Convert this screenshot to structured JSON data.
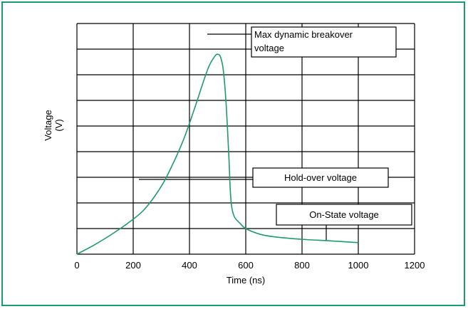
{
  "colors": {
    "frame": "#1f9a6e",
    "curve": "#1f9a6e",
    "grid": "#000000"
  },
  "chart_data": {
    "type": "line",
    "title": "",
    "xlabel": "Time (ns)",
    "ylabel_line1": "Voltage",
    "ylabel_line2": "(V)",
    "xlim": [
      0,
      1200
    ],
    "x_ticks": [
      0,
      200,
      400,
      600,
      800,
      1000,
      1200
    ],
    "x_tick_labels": [
      "0",
      "200",
      "400",
      "600",
      "800",
      "1000",
      "1200"
    ],
    "y_gridlines": 9,
    "y_ticks_labeled": false,
    "grid": true,
    "legend": "none",
    "series": [
      {
        "x": [
          0,
          60,
          120,
          180,
          240,
          300,
          340,
          380,
          420,
          450,
          470,
          490,
          500,
          510,
          520,
          530,
          540,
          545,
          550,
          560,
          580,
          600,
          650,
          700,
          800,
          900,
          1000
        ],
        "y": [
          0.0,
          0.35,
          0.75,
          1.2,
          1.75,
          2.65,
          3.5,
          4.5,
          5.75,
          6.75,
          7.35,
          7.72,
          7.8,
          7.7,
          7.2,
          5.9,
          3.8,
          2.5,
          1.85,
          1.45,
          1.2,
          1.0,
          0.78,
          0.68,
          0.58,
          0.52,
          0.45
        ]
      }
    ],
    "annotations": [
      {
        "lines": [
          "Max dynamic breakover",
          "voltage"
        ]
      },
      {
        "lines": [
          "Hold-over voltage"
        ]
      },
      {
        "lines": [
          "On-State voltage"
        ]
      }
    ]
  }
}
